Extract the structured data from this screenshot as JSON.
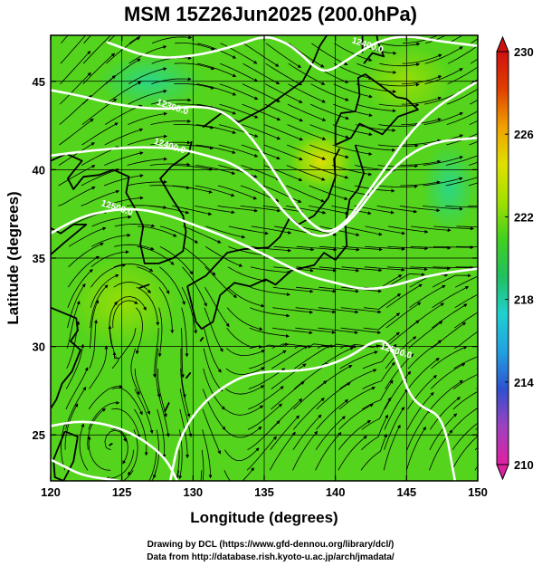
{
  "chart_data": {
    "type": "heatmap",
    "title": "MSM 15Z26Jun2025 (200.0hPa)",
    "xlabel": "Longitude (degrees)",
    "ylabel": "Latitude  (degrees)",
    "xlim": [
      120,
      150
    ],
    "ylim": [
      22.4,
      47.6
    ],
    "xticks": [
      120,
      125,
      130,
      135,
      140,
      145,
      150
    ],
    "yticks": [
      25,
      30,
      35,
      40,
      45
    ],
    "colorbar": {
      "min": 210,
      "max": 230,
      "ticks": [
        210,
        214,
        218,
        222,
        226,
        230
      ],
      "colors": [
        "#e020a0",
        "#a040c0",
        "#3050d0",
        "#20a0e0",
        "#20d0d0",
        "#20c060",
        "#40d020",
        "#a0e000",
        "#e0e000",
        "#f0a000",
        "#e04000",
        "#d01010"
      ]
    },
    "contours": [
      {
        "label": "12300.0",
        "lon": [
          120,
          122,
          125,
          128,
          130,
          132,
          134,
          136,
          138,
          140,
          143,
          146,
          150
        ],
        "lat": [
          44.5,
          44.2,
          43.6,
          43.4,
          43.6,
          43.4,
          42.0,
          39.5,
          37.0,
          36.2,
          39.5,
          43.0,
          45.0
        ]
      },
      {
        "label": "12400.0",
        "lon": [
          124,
          127,
          130,
          133,
          135,
          136.5,
          137.5,
          138.5,
          139.5,
          141,
          143,
          145,
          147,
          150
        ],
        "lat": [
          47.2,
          46.3,
          46.4,
          47.0,
          47.6,
          47.2,
          46.6,
          45.8,
          45.5,
          46.3,
          47.3,
          47.6,
          47.3,
          47.0
        ]
      },
      {
        "label": "12400.0",
        "lon": [
          120,
          123,
          126,
          129,
          131,
          133,
          135,
          137,
          139,
          141,
          143,
          145,
          147,
          150
        ],
        "lat": [
          40.8,
          41.1,
          41.3,
          41.2,
          40.8,
          40.3,
          39.0,
          37.0,
          36.0,
          37.0,
          39.2,
          40.8,
          41.6,
          41.8
        ]
      },
      {
        "label": "12500.0",
        "lon": [
          120,
          122,
          124,
          126,
          128,
          130,
          132,
          134,
          136,
          138,
          140,
          142,
          144,
          146,
          148,
          150
        ],
        "lat": [
          36.4,
          37.3,
          37.7,
          37.8,
          37.5,
          36.9,
          36.3,
          35.6,
          34.8,
          34.0,
          33.6,
          33.2,
          33.4,
          33.9,
          34.2,
          34.4
        ]
      },
      {
        "label": "12500.0",
        "lon": [
          128.4,
          129,
          130.6,
          133,
          135,
          137,
          139,
          141,
          142.8,
          143.8,
          144.6,
          145.2,
          146,
          147.6,
          148.4
        ],
        "lat": [
          22.4,
          24.8,
          26.8,
          28.2,
          28.6,
          28.6,
          28.8,
          29.4,
          30.4,
          30.2,
          28.6,
          27.3,
          26.6,
          26.0,
          22.4
        ]
      },
      {
        "label": "12500.0",
        "lon": [
          120,
          122,
          124,
          126,
          128,
          128.9
        ],
        "lat": [
          25.5,
          25.8,
          25.6,
          25.0,
          23.8,
          22.4
        ]
      },
      {
        "label": "12500.0",
        "lon": [
          120,
          121,
          122,
          123,
          124,
          124.8
        ],
        "lat": [
          23.6,
          23.2,
          22.8,
          22.6,
          22.5,
          22.4
        ]
      }
    ],
    "contour_labels": [
      {
        "text": "12300.0",
        "lon": 128.5,
        "lat": 43.4
      },
      {
        "text": "12400.0",
        "lon": 128.3,
        "lat": 41.2
      },
      {
        "text": "12500.0",
        "lon": 124.6,
        "lat": 37.7
      },
      {
        "text": "12400.0",
        "lon": 142.2,
        "lat": 46.9
      },
      {
        "text": "12500.0",
        "lon": 144.2,
        "lat": 29.6
      }
    ],
    "vortex_centers": [
      {
        "lon": 125.3,
        "lat": 32.4
      },
      {
        "lon": 124.5,
        "lat": 24.4
      }
    ],
    "grid": true
  },
  "credits": {
    "line1": "Drawing by DCL (https://www.gfd-dennou.org/library/dcl/)",
    "line2": "Data from http://database.rish.kyoto-u.ac.jp/arch/jmadata/"
  }
}
